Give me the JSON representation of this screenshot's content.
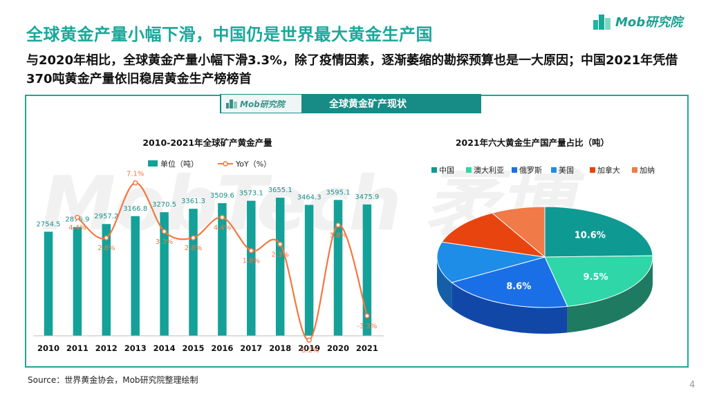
{
  "header": {
    "title": "全球黄金产量小幅下滑，中国仍是世界最大黄金生产国",
    "subtitle": "与2020年相比，全球黄金产量小幅下滑3.3%，除了疫情因素，逐渐萎缩的勘探预算也是一大原因；中国2021年凭借370吨黄金产量依旧稳居黄金生产榜榜首",
    "logo_text": "Mob研究院"
  },
  "banner": {
    "logo_text": "Mob研究院",
    "label": "全球黄金矿产现状"
  },
  "watermark": "MobTech 袤博",
  "colors": {
    "accent": "#19a89a",
    "bar": "#14a19a",
    "line": "#f07840",
    "china": "#0e9a93",
    "australia": "#2ed6a8",
    "russia": "#1b6fe6",
    "usa": "#1d8de8",
    "canada": "#e8440f",
    "ghana": "#f07a48"
  },
  "chart_data": [
    {
      "type": "bar",
      "title": "2010-2021年全球矿产黄金产量",
      "categories": [
        "2010",
        "2011",
        "2012",
        "2013",
        "2014",
        "2015",
        "2016",
        "2017",
        "2018",
        "2019",
        "2020",
        "2021"
      ],
      "series": [
        {
          "name": "单位（吨）",
          "type": "bar",
          "values": [
            2754.5,
            2876.9,
            2957.2,
            3166.8,
            3270.5,
            3361.3,
            3509.6,
            3573.1,
            3655.1,
            3464.3,
            3595.1,
            3475.9
          ],
          "labels": [
            "2754.5",
            "2876.9",
            "2957.2",
            "3166.8",
            "3270.5",
            "3361.3",
            "3509.6",
            "3573.1",
            "3655.1",
            "3464.3",
            "3595.1",
            "3475.9"
          ]
        },
        {
          "name": "YoY（%）",
          "type": "line",
          "values": [
            null,
            4.4,
            2.8,
            7.1,
            3.3,
            2.8,
            4.4,
            1.8,
            2.3,
            -5.2,
            3.8,
            -3.3
          ],
          "labels": [
            "",
            "4.4%",
            "2.8%",
            "7.1%",
            "3.3%",
            "2.8%",
            "4.4%",
            "1.8%",
            "2.3%",
            "-5.2%",
            "3.8%",
            "-3.3%"
          ]
        }
      ],
      "ylim": [
        0,
        4000
      ],
      "y2lim": [
        -8,
        10
      ],
      "legend": "top-center"
    },
    {
      "type": "pie",
      "title": "2021年六大黄金生产国产量占比（吨）",
      "categories": [
        "中国",
        "澳大利亚",
        "俄罗斯",
        "美国",
        "加拿大",
        "加纳"
      ],
      "values": [
        10.6,
        9.5,
        8.6,
        5.7,
        5.2,
        3.5
      ],
      "labels": [
        "10.6%",
        "9.5%",
        "8.6%",
        "",
        "",
        ""
      ],
      "legend": "top"
    }
  ],
  "footer": {
    "source": "Source：世界黄金协会，Mob研究院整理绘制",
    "page": "4"
  }
}
